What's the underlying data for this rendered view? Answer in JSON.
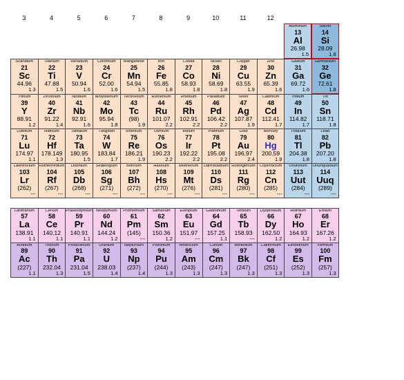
{
  "col_labels": [
    "3",
    "4",
    "5",
    "6",
    "7",
    "8",
    "9",
    "10",
    "11",
    "12",
    "",
    "",
    "",
    ""
  ],
  "colors": {
    "peach": "#fbe1ca",
    "blue": "#b9d5e9",
    "darkblue": "#8cb9dc",
    "pink": "#f6d0ea",
    "purple": "#d2bbe8"
  },
  "rows": [
    [
      null,
      null,
      null,
      null,
      null,
      null,
      null,
      null,
      null,
      null,
      {
        "nm": "Aluminum",
        "num": "13",
        "sym": "Al",
        "mass": "26.98",
        "en": "1.5",
        "c": "blue",
        "red": true
      },
      {
        "nm": "Silicon",
        "num": "14",
        "sym": "Si",
        "mass": "28.09",
        "en": "1.8",
        "c": "darkblue",
        "red": true
      },
      null,
      null
    ],
    [
      {
        "nm": "Scandium",
        "num": "21",
        "sym": "Sc",
        "mass": "44.96",
        "en": "1.3",
        "c": "peach"
      },
      {
        "nm": "Titanium",
        "num": "22",
        "sym": "Ti",
        "mass": "47.88",
        "en": "1.5",
        "c": "peach"
      },
      {
        "nm": "Vanadium",
        "num": "23",
        "sym": "V",
        "mass": "50.94",
        "en": "1.6",
        "c": "peach"
      },
      {
        "nm": "Chromium",
        "num": "24",
        "sym": "Cr",
        "mass": "52.00",
        "en": "1.6",
        "c": "peach"
      },
      {
        "nm": "Manganese",
        "num": "25",
        "sym": "Mn",
        "mass": "54.94",
        "en": "1.5",
        "c": "peach"
      },
      {
        "nm": "Iron",
        "num": "26",
        "sym": "Fe",
        "mass": "55.85",
        "en": "1.8",
        "c": "peach"
      },
      {
        "nm": "Cobalt",
        "num": "27",
        "sym": "Co",
        "mass": "58.93",
        "en": "1.8",
        "c": "peach"
      },
      {
        "nm": "Nickel",
        "num": "28",
        "sym": "Ni",
        "mass": "58.69",
        "en": "1.8",
        "c": "peach"
      },
      {
        "nm": "Copper",
        "num": "29",
        "sym": "Cu",
        "mass": "63.55",
        "en": "1.9",
        "c": "peach"
      },
      {
        "nm": "Zinc",
        "num": "30",
        "sym": "Zn",
        "mass": "65.39",
        "en": "1.6",
        "c": "peach"
      },
      {
        "nm": "Gallium",
        "num": "31",
        "sym": "Ga",
        "mass": "69.72",
        "en": "1.6",
        "c": "blue"
      },
      {
        "nm": "Germanium",
        "num": "32",
        "sym": "Ge",
        "mass": "72.61",
        "en": "1.8",
        "c": "darkblue",
        "red": true
      },
      null,
      null
    ],
    [
      {
        "nm": "Yttrium",
        "num": "39",
        "sym": "Y",
        "mass": "88.91",
        "en": "1.2",
        "c": "peach"
      },
      {
        "nm": "Zirconium",
        "num": "40",
        "sym": "Zr",
        "mass": "91.22",
        "en": "1.4",
        "c": "peach"
      },
      {
        "nm": "Niobium",
        "num": "41",
        "sym": "Nb",
        "mass": "92.91",
        "en": "1.6",
        "c": "peach"
      },
      {
        "nm": "Molybdenum",
        "num": "42",
        "sym": "Mo",
        "mass": "95.94",
        "en": "1.8",
        "c": "peach"
      },
      {
        "nm": "Technetium",
        "num": "43",
        "sym": "Tc",
        "mass": "(98)",
        "en": "1.9",
        "c": "peach"
      },
      {
        "nm": "Ruthenium",
        "num": "44",
        "sym": "Ru",
        "mass": "101.07",
        "en": "2.2",
        "c": "peach"
      },
      {
        "nm": "Rhodium",
        "num": "45",
        "sym": "Rh",
        "mass": "102.91",
        "en": "2.2",
        "c": "peach"
      },
      {
        "nm": "Palladium",
        "num": "46",
        "sym": "Pd",
        "mass": "106.42",
        "en": "2.2",
        "c": "peach"
      },
      {
        "nm": "Silver",
        "num": "47",
        "sym": "Ag",
        "mass": "107.87",
        "en": "1.9",
        "c": "peach"
      },
      {
        "nm": "Cadmium",
        "num": "48",
        "sym": "Cd",
        "mass": "112.41",
        "en": "1.7",
        "c": "peach"
      },
      {
        "nm": "Indium",
        "num": "49",
        "sym": "In",
        "mass": "114.82",
        "en": "1.7",
        "c": "blue"
      },
      {
        "nm": "Tin",
        "num": "50",
        "sym": "Sn",
        "mass": "118.71",
        "en": "1.8",
        "c": "blue"
      },
      null,
      null
    ],
    [
      {
        "nm": "Lutetium",
        "num": "71",
        "sym": "Lu",
        "mass": "174.97",
        "en": "1.1",
        "c": "peach"
      },
      {
        "nm": "Hafnium",
        "num": "72",
        "sym": "Hf",
        "mass": "178.149",
        "en": "1.3",
        "c": "peach"
      },
      {
        "nm": "Tantalum",
        "num": "73",
        "sym": "Ta",
        "mass": "180.95",
        "en": "1.5",
        "c": "peach"
      },
      {
        "nm": "Tungsten",
        "num": "74",
        "sym": "W",
        "mass": "183.84",
        "en": "1.7",
        "c": "peach"
      },
      {
        "nm": "Rhenium",
        "num": "75",
        "sym": "Re",
        "mass": "186.21",
        "en": "1.9",
        "c": "peach"
      },
      {
        "nm": "Osmium",
        "num": "76",
        "sym": "Os",
        "mass": "190.23",
        "en": "2.2",
        "c": "peach"
      },
      {
        "nm": "Iridium",
        "num": "77",
        "sym": "Ir",
        "mass": "192.22",
        "en": "2.2",
        "c": "peach"
      },
      {
        "nm": "Platinum",
        "num": "78",
        "sym": "Pt",
        "mass": "195.08",
        "en": "2.2",
        "c": "peach"
      },
      {
        "nm": "Gold",
        "num": "79",
        "sym": "Au",
        "mass": "196.97",
        "en": "2.4",
        "c": "peach"
      },
      {
        "nm": "Mercury",
        "num": "80",
        "sym": "Hg",
        "mass": "200.59",
        "en": "1.9",
        "c": "peach",
        "hl": true
      },
      {
        "nm": "Thallium",
        "num": "81",
        "sym": "Tl",
        "mass": "204.38",
        "en": "1.8",
        "c": "blue"
      },
      {
        "nm": "Lead",
        "num": "82",
        "sym": "Pb",
        "mass": "207.20",
        "en": "1.8",
        "c": "blue"
      },
      null,
      null
    ],
    [
      {
        "nm": "Lawrencium",
        "num": "103",
        "sym": "Lr",
        "mass": "(262)",
        "en": "---",
        "c": "peach"
      },
      {
        "nm": "Rutherfordium",
        "num": "104",
        "sym": "Rf",
        "mass": "(267)",
        "en": "---",
        "c": "peach"
      },
      {
        "nm": "Dubnium",
        "num": "105",
        "sym": "Db",
        "mass": "(268)",
        "en": "---",
        "c": "peach"
      },
      {
        "nm": "Seaborgium",
        "num": "106",
        "sym": "Sg",
        "mass": "(271)",
        "en": "---",
        "c": "peach"
      },
      {
        "nm": "Bohrium",
        "num": "107",
        "sym": "Bh",
        "mass": "(272)",
        "en": "---",
        "c": "peach"
      },
      {
        "nm": "Hassium",
        "num": "108",
        "sym": "Hs",
        "mass": "(270)",
        "en": "---",
        "c": "peach"
      },
      {
        "nm": "Meitnerium",
        "num": "109",
        "sym": "Mt",
        "mass": "(276)",
        "en": "---",
        "c": "peach"
      },
      {
        "nm": "Darmstadtium",
        "num": "110",
        "sym": "Ds",
        "mass": "(281)",
        "en": "---",
        "c": "peach"
      },
      {
        "nm": "Roentgenium",
        "num": "111",
        "sym": "Rg",
        "mass": "(280)",
        "en": "---",
        "c": "peach"
      },
      {
        "nm": "Copernicium",
        "num": "112",
        "sym": "Cn",
        "mass": "(285)",
        "en": "---",
        "c": "peach"
      },
      {
        "nm": "Ununtrium",
        "num": "113",
        "sym": "Uut",
        "mass": "(284)",
        "en": "---",
        "c": "blue"
      },
      {
        "nm": "Ununquadium",
        "num": "114",
        "sym": "Uuq",
        "mass": "(289)",
        "en": "---",
        "c": "blue"
      },
      null,
      null
    ]
  ],
  "fblock": [
    [
      {
        "nm": "Lanthanum",
        "num": "57",
        "sym": "La",
        "mass": "138.91",
        "en": "1.1",
        "c": "pink"
      },
      {
        "nm": "Cerium",
        "num": "58",
        "sym": "Ce",
        "mass": "140.12",
        "en": "1.1",
        "c": "pink"
      },
      {
        "nm": "Praseodymium",
        "num": "59",
        "sym": "Pr",
        "mass": "140.91",
        "en": "1.1",
        "c": "pink"
      },
      {
        "nm": "Neodymium",
        "num": "60",
        "sym": "Nd",
        "mass": "144.24",
        "en": "1.2",
        "c": "pink"
      },
      {
        "nm": "Promethium",
        "num": "61",
        "sym": "Pm",
        "mass": "(145)",
        "en": "---",
        "c": "pink"
      },
      {
        "nm": "Samarium",
        "num": "62",
        "sym": "Sm",
        "mass": "150.36",
        "en": "1.2",
        "c": "pink"
      },
      {
        "nm": "Europium",
        "num": "63",
        "sym": "Eu",
        "mass": "151.97",
        "en": "---",
        "c": "pink"
      },
      {
        "nm": "Gadolinium",
        "num": "64",
        "sym": "Gd",
        "mass": "157.25",
        "en": "1.1",
        "c": "pink"
      },
      {
        "nm": "Terbium",
        "num": "65",
        "sym": "Tb",
        "mass": "158.93",
        "en": "---",
        "c": "pink"
      },
      {
        "nm": "Dysprosium",
        "num": "66",
        "sym": "Dy",
        "mass": "162.50",
        "en": "1.2",
        "c": "pink"
      },
      {
        "nm": "Holmium",
        "num": "67",
        "sym": "Ho",
        "mass": "164.93",
        "en": "1.2",
        "c": "pink"
      },
      {
        "nm": "Erbium",
        "num": "68",
        "sym": "Er",
        "mass": "167.26",
        "en": "1.2",
        "c": "pink"
      },
      null,
      null
    ],
    [
      {
        "nm": "Actinium",
        "num": "89",
        "sym": "Ac",
        "mass": "(227)",
        "en": "1.1",
        "c": "purple"
      },
      {
        "nm": "Thorium",
        "num": "90",
        "sym": "Th",
        "mass": "232.04",
        "en": "1.3",
        "c": "purple"
      },
      {
        "nm": "Protactinium",
        "num": "91",
        "sym": "Pa",
        "mass": "231.04",
        "en": "1.5",
        "c": "purple"
      },
      {
        "nm": "Uranium",
        "num": "92",
        "sym": "U",
        "mass": "238.03",
        "en": "1.4",
        "c": "purple"
      },
      {
        "nm": "Neptunium",
        "num": "93",
        "sym": "Np",
        "mass": "(237)",
        "en": "1.4",
        "c": "purple"
      },
      {
        "nm": "Plutonium",
        "num": "94",
        "sym": "Pu",
        "mass": "(244)",
        "en": "1.3",
        "c": "purple"
      },
      {
        "nm": "Americium",
        "num": "95",
        "sym": "Am",
        "mass": "(243)",
        "en": "1.3",
        "c": "purple"
      },
      {
        "nm": "Curium",
        "num": "96",
        "sym": "Cm",
        "mass": "(247)",
        "en": "1.3",
        "c": "purple"
      },
      {
        "nm": "Berkelium",
        "num": "97",
        "sym": "Bk",
        "mass": "(247)",
        "en": "1.3",
        "c": "purple"
      },
      {
        "nm": "Californium",
        "num": "98",
        "sym": "Cf",
        "mass": "(251)",
        "en": "1.3",
        "c": "purple"
      },
      {
        "nm": "Einsteinium",
        "num": "99",
        "sym": "Es",
        "mass": "(252)",
        "en": "1.3",
        "c": "purple"
      },
      {
        "nm": "Fermium",
        "num": "100",
        "sym": "Fm",
        "mass": "(257)",
        "en": "1.3",
        "c": "purple"
      },
      null,
      null
    ]
  ]
}
